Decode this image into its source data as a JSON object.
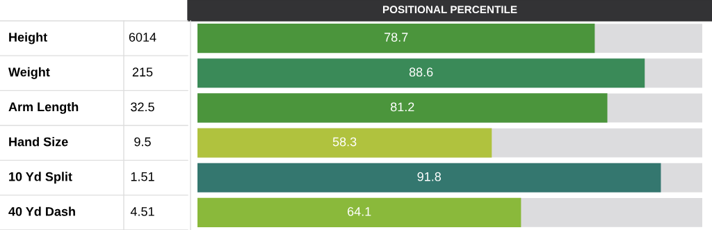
{
  "chart_data": {
    "type": "bar",
    "orientation": "horizontal",
    "title": "POSITIONAL PERCENTILE",
    "categories": [
      "Height",
      "Weight",
      "Arm Length",
      "Hand Size",
      "10 Yd Split",
      "40 Yd Dash"
    ],
    "values": [
      78.7,
      88.6,
      81.2,
      58.3,
      91.8,
      64.1
    ],
    "colors": [
      "#4b953c",
      "#3a8a58",
      "#4b953c",
      "#b0c23e",
      "#34776f",
      "#8ab93b"
    ],
    "annotations": [
      "6014",
      "215",
      "32.5",
      "9.5",
      "1.51",
      "4.51"
    ],
    "xlim": [
      0,
      100
    ],
    "data_labels": true,
    "legend": false
  }
}
